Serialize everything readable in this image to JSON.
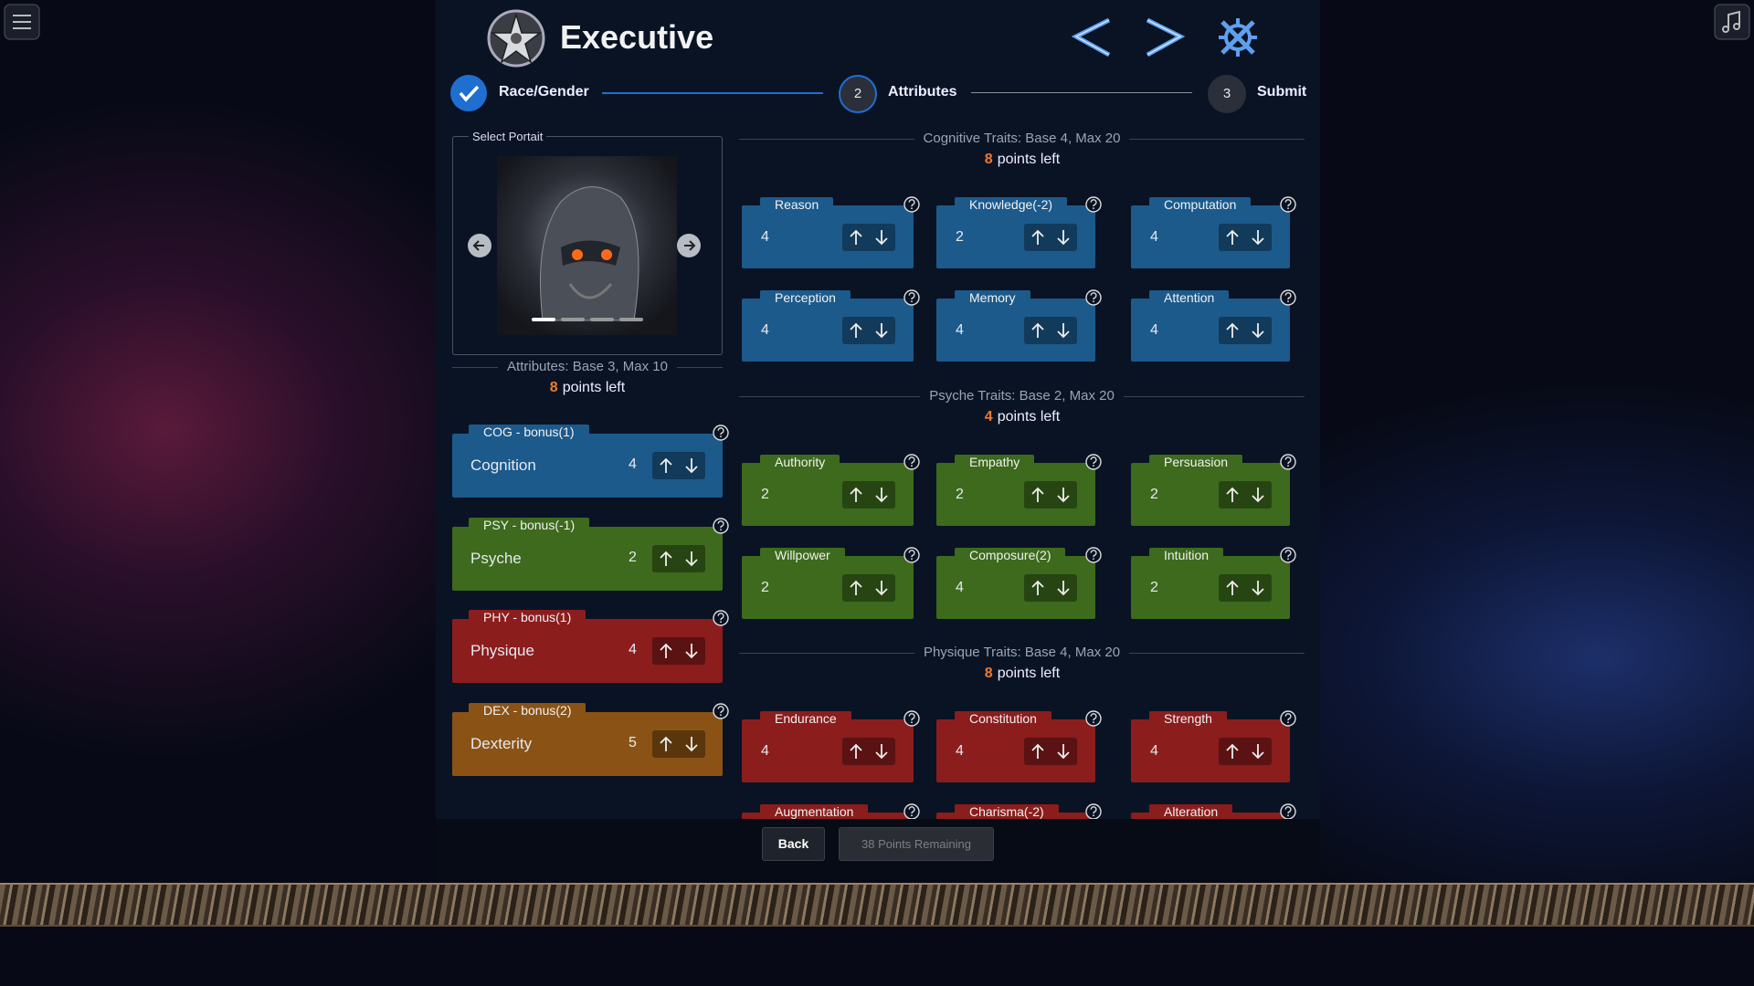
{
  "header": {
    "title": "Executive"
  },
  "stepper": [
    {
      "label": "Race/Gender"
    },
    {
      "number": 2,
      "label": "Attributes"
    },
    {
      "number": 3,
      "label": "Submit"
    }
  ],
  "portrait": {
    "label": "Select Portait"
  },
  "attributes": {
    "heading": "Attributes: Base 3, Max 10",
    "points": 8,
    "points_suffix": "points left",
    "items": [
      {
        "tag": "COG - bonus(1)",
        "name": "Cognition",
        "value": 4,
        "color": "#1c5a8c"
      },
      {
        "tag": "PSY - bonus(-1)",
        "name": "Psyche",
        "value": 2,
        "color": "#3d6a1d"
      },
      {
        "tag": "PHY - bonus(1)",
        "name": "Physique",
        "value": 4,
        "color": "#8b1d1d"
      },
      {
        "tag": "DEX - bonus(2)",
        "name": "Dexterity",
        "value": 5,
        "color": "#8a5315"
      }
    ]
  },
  "trait_groups": [
    {
      "heading": "Cognitive Traits: Base 4, Max 20",
      "points": 8,
      "points_suffix": "points left",
      "color": "#1c5a8c",
      "traits": [
        {
          "name": "Reason",
          "value": 4
        },
        {
          "name": "Knowledge(-2)",
          "value": 2
        },
        {
          "name": "Computation",
          "value": 4
        },
        {
          "name": "Perception",
          "value": 4
        },
        {
          "name": "Memory",
          "value": 4
        },
        {
          "name": "Attention",
          "value": 4
        }
      ]
    },
    {
      "heading": "Psyche Traits: Base 2, Max 20",
      "points": 4,
      "points_suffix": "points left",
      "color": "#3d6a1d",
      "traits": [
        {
          "name": "Authority",
          "value": 2
        },
        {
          "name": "Empathy",
          "value": 2
        },
        {
          "name": "Persuasion",
          "value": 2
        },
        {
          "name": "Willpower",
          "value": 2
        },
        {
          "name": "Composure(2)",
          "value": 4
        },
        {
          "name": "Intuition",
          "value": 2
        }
      ]
    },
    {
      "heading": "Physique Traits: Base 4, Max 20",
      "points": 8,
      "points_suffix": "points left",
      "color": "#8b1d1d",
      "traits": [
        {
          "name": "Endurance",
          "value": 4
        },
        {
          "name": "Constitution",
          "value": 4
        },
        {
          "name": "Strength",
          "value": 4
        },
        {
          "name": "Augmentation"
        },
        {
          "name": "Charisma(-2)"
        },
        {
          "name": "Alteration"
        }
      ]
    }
  ],
  "footer": {
    "back": "Back",
    "remaining": "38 Points Remaining"
  }
}
